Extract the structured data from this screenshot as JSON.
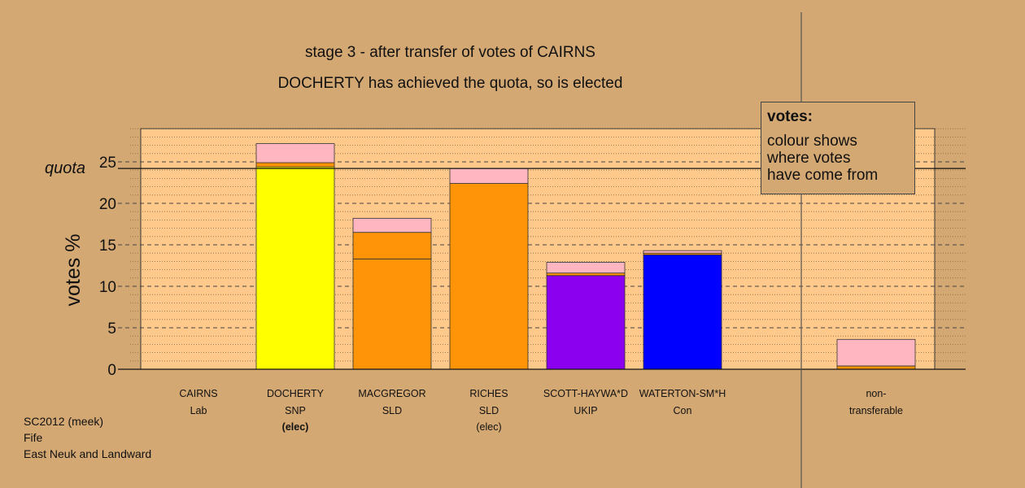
{
  "chart_data": {
    "type": "bar",
    "title": "stage 3 - after transfer of votes of CAIRNS",
    "subtitle": "DOCHERTY has achieved the quota, so is elected",
    "ylabel": "votes %",
    "ylim": [
      0,
      29
    ],
    "yticks": [
      0,
      5,
      10,
      15,
      20,
      25
    ],
    "quota": 24.2,
    "quota_label": "quota",
    "grid": true,
    "legend": {
      "title": "votes:",
      "lines": [
        "colour shows",
        "where votes",
        "have come from"
      ],
      "placement": "top-right"
    },
    "categories": [
      {
        "name": "CAIRNS",
        "party": "Lab",
        "status": "",
        "segments": []
      },
      {
        "name": "DOCHERTY",
        "party": "SNP",
        "status": "(elec)",
        "status_bold": true,
        "segments": [
          {
            "value": 24.4,
            "color": "#ffff00"
          },
          {
            "value": 0.5,
            "color": "#ff9408"
          },
          {
            "value": 2.3,
            "color": "#ffb6c1"
          }
        ]
      },
      {
        "name": "MACGREGOR",
        "party": "SLD",
        "status": "",
        "segments": [
          {
            "value": 13.3,
            "color": "#ff9408"
          },
          {
            "value": 3.2,
            "color": "#ff9408"
          },
          {
            "value": 1.7,
            "color": "#ffb6c1"
          }
        ]
      },
      {
        "name": "RICHES",
        "party": "SLD",
        "status": "(elec)",
        "status_bold": false,
        "segments": [
          {
            "value": 22.4,
            "color": "#ff9408"
          },
          {
            "value": 1.8,
            "color": "#ffb6c1"
          }
        ]
      },
      {
        "name": "SCOTT-HAYWA*D",
        "party": "UKIP",
        "status": "",
        "segments": [
          {
            "value": 11.3,
            "color": "#8b00ee"
          },
          {
            "value": 0.3,
            "color": "#ff9408"
          },
          {
            "value": 1.3,
            "color": "#ffb6c1"
          }
        ]
      },
      {
        "name": "WATERTON-SM*H",
        "party": "Con",
        "status": "",
        "segments": [
          {
            "value": 13.8,
            "color": "#0000ff"
          },
          {
            "value": 0.2,
            "color": "#ff9408"
          },
          {
            "value": 0.3,
            "color": "#ffb6c1"
          }
        ]
      },
      {
        "name": "",
        "party": "",
        "status": "",
        "segments": []
      },
      {
        "name": "non-",
        "party": "transferable",
        "status": "",
        "segments": [
          {
            "value": 0.4,
            "color": "#ff9408"
          },
          {
            "value": 3.2,
            "color": "#ffb6c1"
          }
        ]
      }
    ]
  },
  "footer": {
    "line1": "SC2012 (meek)",
    "line2": "Fife",
    "line3": "East Neuk and Landward"
  },
  "colors": {
    "background": "#d4a873",
    "plot_background": "#ffc98c"
  }
}
